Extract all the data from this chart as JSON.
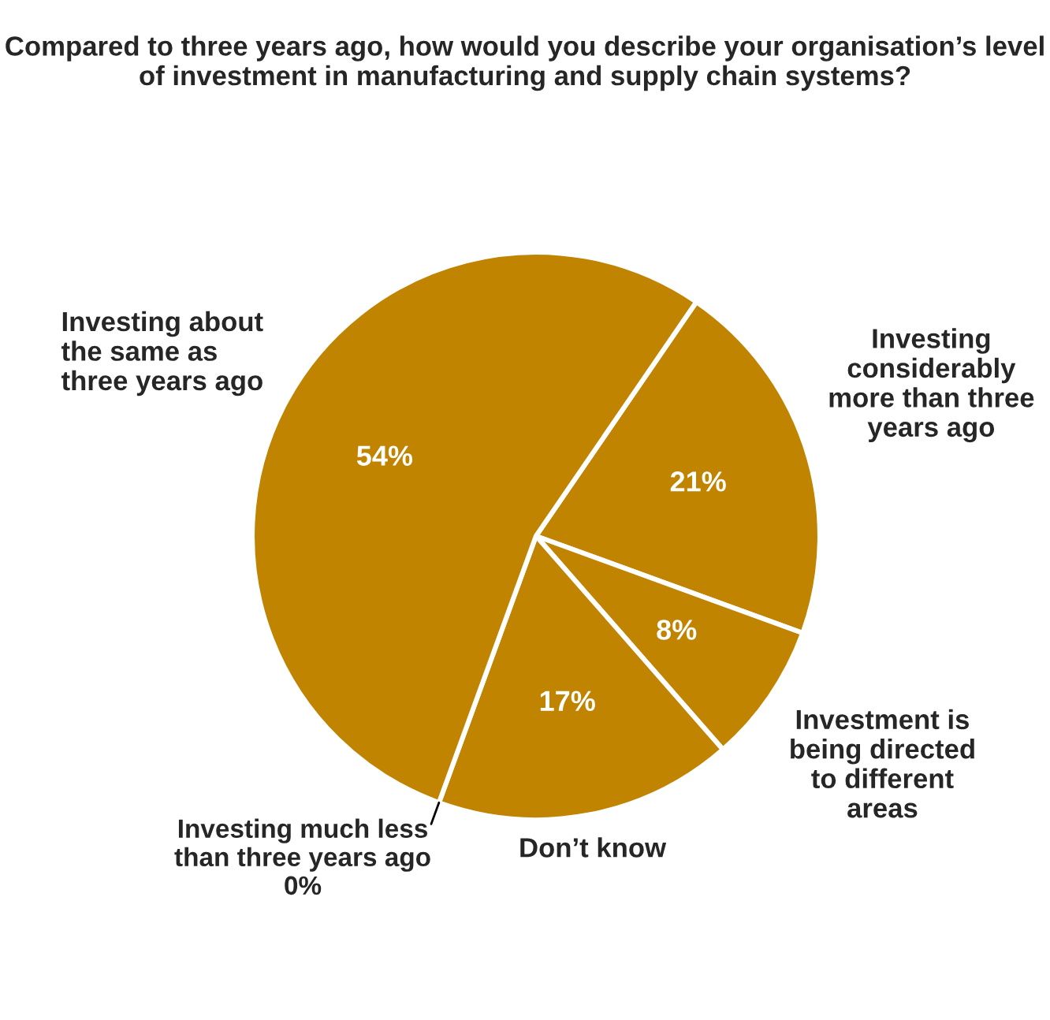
{
  "chart_data": {
    "type": "pie",
    "title": "Compared to three years ago, how would you describe your organisation’s level of investment in manufacturing and supply chain systems?",
    "categories": [
      "Investing considerably more than three years ago",
      "Investment is being directed to different areas",
      "Don’t know",
      "Investing much less than three years ago",
      "Investing about the same as three years ago"
    ],
    "values": [
      21,
      8,
      17,
      0,
      54
    ],
    "colors": [
      "#c08400",
      "#c08400",
      "#c08400",
      "#c08400",
      "#c08400"
    ],
    "value_labels": [
      "21%",
      "8%",
      "17%",
      "0%",
      "54%"
    ]
  }
}
